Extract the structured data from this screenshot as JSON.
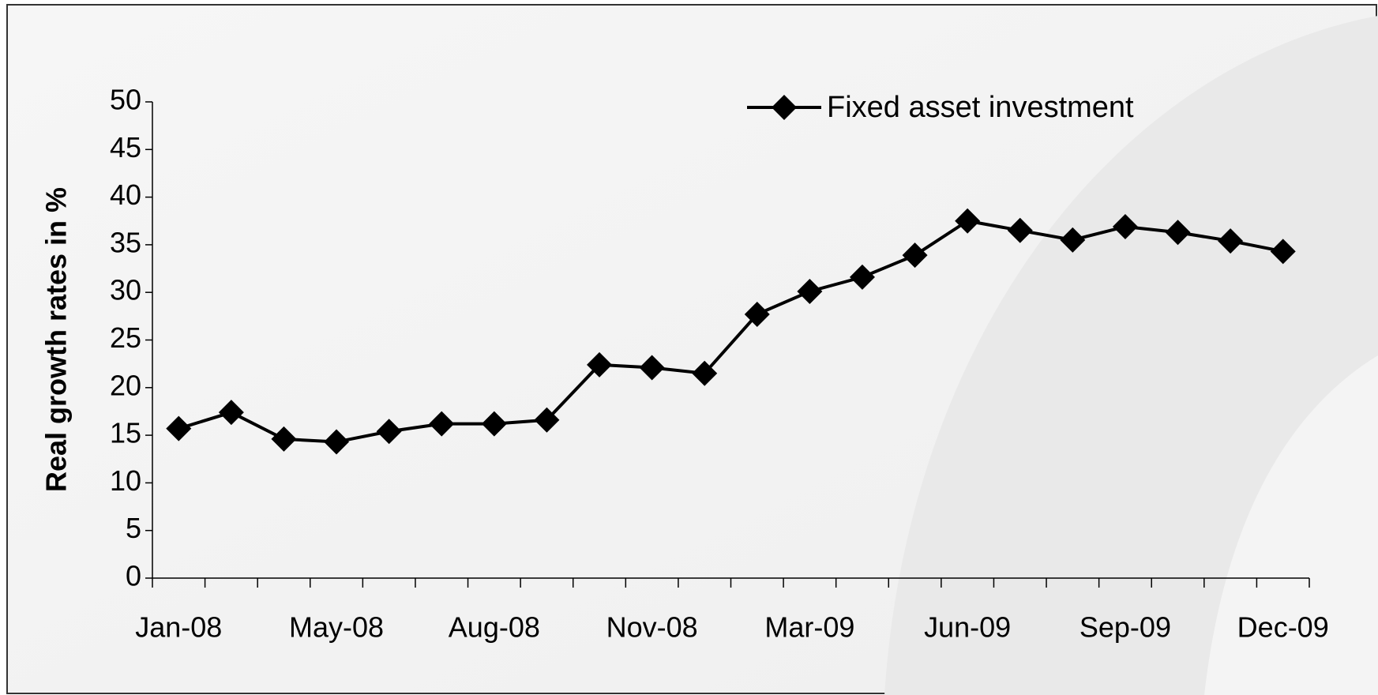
{
  "chart_data": {
    "type": "line",
    "y_label": "Real growth rates  in %",
    "categories": [
      "Jan-08",
      null,
      null,
      "May-08",
      null,
      null,
      "Aug-08",
      null,
      null,
      "Nov-08",
      null,
      null,
      "Mar-09",
      null,
      null,
      "Jun-09",
      null,
      null,
      "Sep-09",
      null,
      null,
      "Dec-09"
    ],
    "series": [
      {
        "name": "Fixed asset investment",
        "color": "#000000",
        "values": [
          15.7,
          17.4,
          14.6,
          14.3,
          15.4,
          16.2,
          16.2,
          16.6,
          22.4,
          22.1,
          21.5,
          27.7,
          30.1,
          31.6,
          33.9,
          37.5,
          36.5,
          35.5,
          36.9,
          36.3,
          35.4,
          34.3
        ]
      }
    ],
    "ylim": [
      0,
      50
    ],
    "yticks": [
      0,
      5,
      10,
      15,
      20,
      25,
      30,
      35,
      40,
      45,
      50
    ],
    "legend": "top-right",
    "grid": false
  }
}
